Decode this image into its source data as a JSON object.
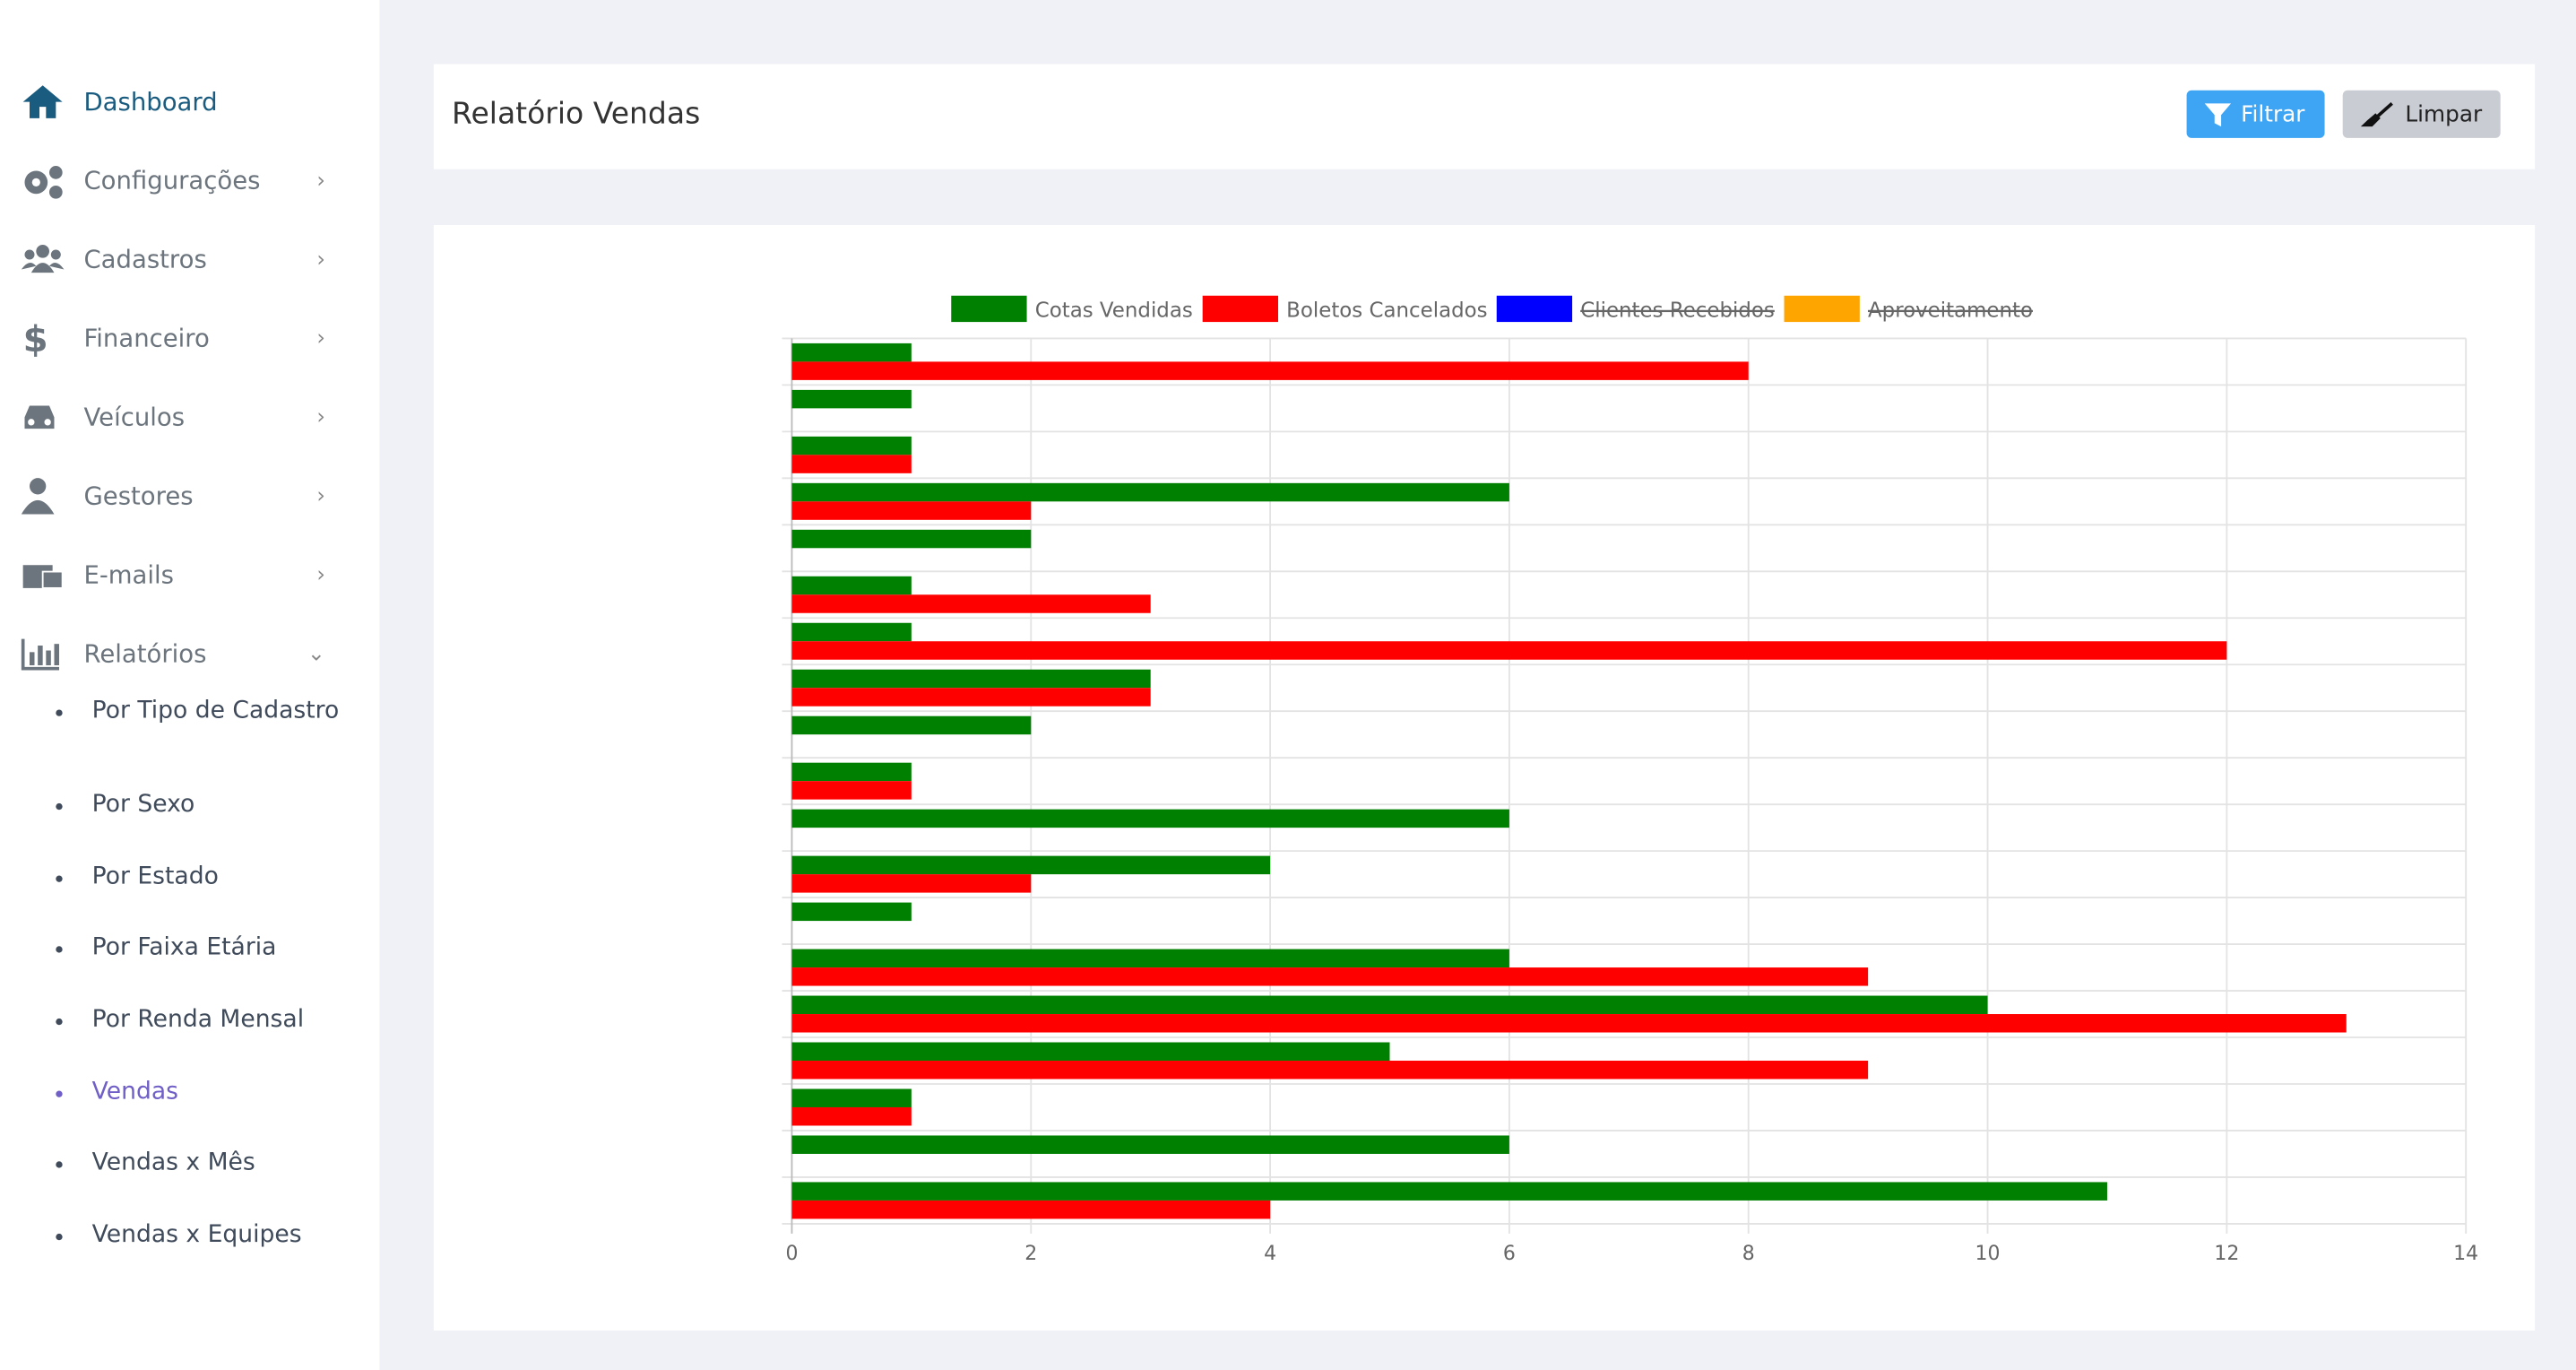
{
  "sidebar": {
    "items": [
      {
        "label": "Dashboard"
      },
      {
        "label": "Configurações"
      },
      {
        "label": "Cadastros"
      },
      {
        "label": "Financeiro"
      },
      {
        "label": "Veículos"
      },
      {
        "label": "Gestores"
      },
      {
        "label": "E-mails"
      },
      {
        "label": "Relatórios"
      }
    ],
    "submenu": [
      {
        "label": "Por Tipo de Cadastro"
      },
      {
        "label": "Por Sexo"
      },
      {
        "label": "Por Estado"
      },
      {
        "label": "Por Faixa Etária"
      },
      {
        "label": "Por Renda Mensal"
      },
      {
        "label": "Vendas"
      },
      {
        "label": "Vendas x Mês"
      },
      {
        "label": "Vendas x Equipes"
      }
    ]
  },
  "header": {
    "title": "Relatório Vendas",
    "filter_button": "Filtrar",
    "clear_button": "Limpar"
  },
  "chart_data": {
    "type": "hbar",
    "categories": [
      null,
      null,
      null,
      null,
      null,
      null,
      null,
      null,
      null,
      null,
      null,
      null,
      null,
      null,
      null,
      null,
      null,
      null,
      null
    ],
    "series": [
      {
        "name": "Cotas Vendidas",
        "color": "#008000",
        "values": [
          1,
          1,
          1,
          6,
          2,
          1,
          1,
          3,
          2,
          1,
          6,
          4,
          1,
          6,
          10,
          5,
          1,
          6,
          11
        ]
      },
      {
        "name": "Boletos Cancelados",
        "color": "#ff0000",
        "values": [
          8,
          0,
          1,
          2,
          0,
          3,
          12,
          3,
          0,
          1,
          0,
          2,
          0,
          9,
          13,
          9,
          1,
          0,
          4
        ]
      },
      {
        "name": "Clientes Recebidos",
        "color": "#0000ff",
        "hidden": true
      },
      {
        "name": "Aproveitamento",
        "color": "#ffa500",
        "hidden": true
      }
    ],
    "xlim": [
      0,
      14
    ],
    "xticks": [
      0,
      2,
      4,
      6,
      8,
      10,
      12,
      14
    ],
    "grid": true
  }
}
